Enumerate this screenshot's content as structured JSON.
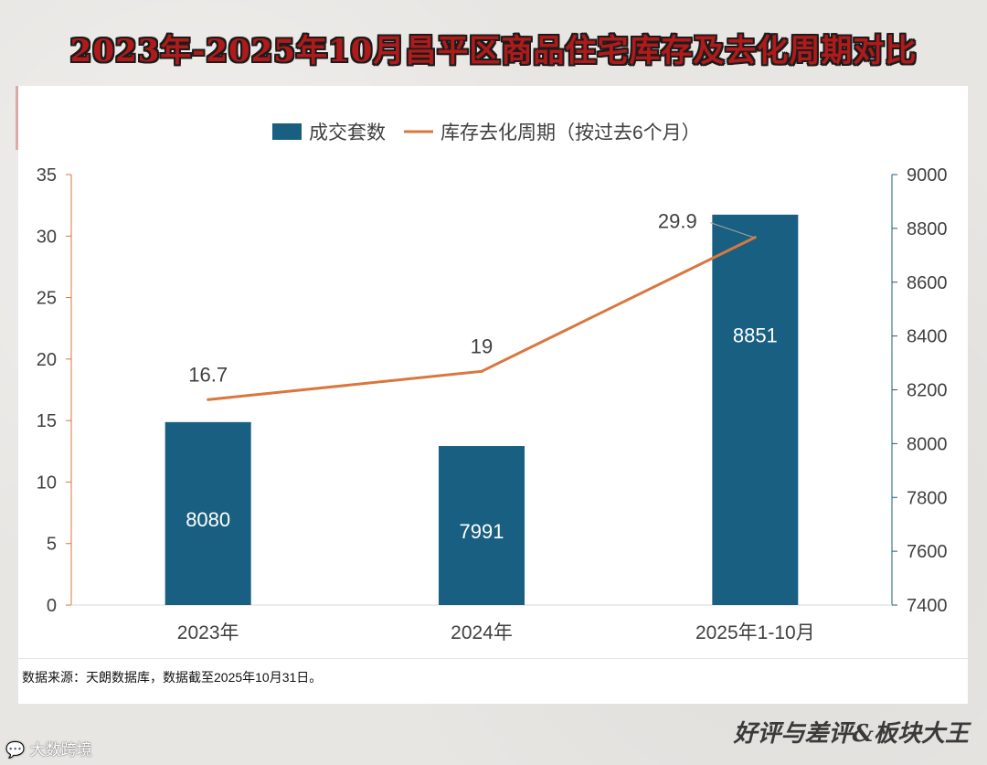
{
  "page": {
    "title": "2023年-2025年10月昌平区商品住宅库存及去化周期对比",
    "source_note": "数据来源：天朗数据库，数据截至2025年10月31日。",
    "brand_bottom": "好评与差评&板块大王",
    "brand_left": "大数跨境",
    "watermark_text": "好评与差评&板块大王"
  },
  "chart_data": {
    "type": "bar",
    "categories": [
      "2023年",
      "2024年",
      "2025年1-10月"
    ],
    "series": [
      {
        "name": "成交套数",
        "type": "bar",
        "axis": "right",
        "values": [
          8080,
          7991,
          8851
        ],
        "color": "#195f82"
      },
      {
        "name": "库存去化周期（按过去6个月）",
        "type": "line",
        "axis": "left",
        "values": [
          16.7,
          19,
          29.9
        ],
        "color": "#d9773e"
      }
    ],
    "y_left": {
      "min": 0,
      "max": 35,
      "ticks": [
        0,
        5,
        10,
        15,
        20,
        25,
        30,
        35
      ],
      "axis_color": "#d9773e"
    },
    "y_right": {
      "min": 7400,
      "max": 9000,
      "ticks": [
        7400,
        7600,
        7800,
        8000,
        8200,
        8400,
        8600,
        8800,
        9000
      ],
      "axis_color": "#195f82"
    },
    "legend_position": "top-center",
    "grid": false
  }
}
